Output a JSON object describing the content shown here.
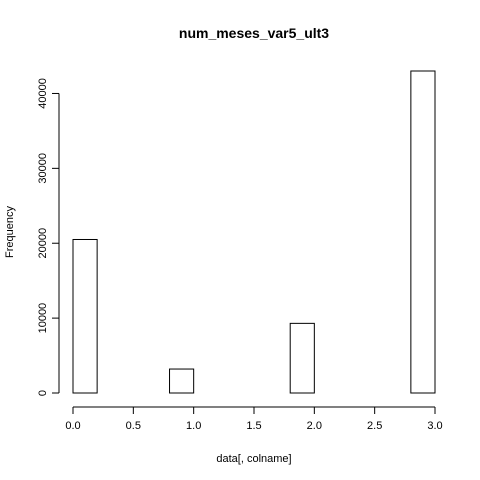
{
  "chart_data": {
    "type": "bar",
    "title": "num_meses_var5_ult3",
    "xlabel": "data[, colname]",
    "ylabel": "Frequency",
    "bins": [
      {
        "x0": 0.0,
        "x1": 0.2,
        "count": 20500
      },
      {
        "x0": 0.2,
        "x1": 0.4,
        "count": 0
      },
      {
        "x0": 0.4,
        "x1": 0.6,
        "count": 0
      },
      {
        "x0": 0.6,
        "x1": 0.8,
        "count": 0
      },
      {
        "x0": 0.8,
        "x1": 1.0,
        "count": 3200
      },
      {
        "x0": 1.0,
        "x1": 1.2,
        "count": 0
      },
      {
        "x0": 1.2,
        "x1": 1.4,
        "count": 0
      },
      {
        "x0": 1.4,
        "x1": 1.6,
        "count": 0
      },
      {
        "x0": 1.6,
        "x1": 1.8,
        "count": 0
      },
      {
        "x0": 1.8,
        "x1": 2.0,
        "count": 9300
      },
      {
        "x0": 2.0,
        "x1": 2.2,
        "count": 0
      },
      {
        "x0": 2.2,
        "x1": 2.4,
        "count": 0
      },
      {
        "x0": 2.4,
        "x1": 2.6,
        "count": 0
      },
      {
        "x0": 2.6,
        "x1": 2.8,
        "count": 0
      },
      {
        "x0": 2.8,
        "x1": 3.0,
        "count": 43000
      }
    ],
    "xlim": [
      0,
      3
    ],
    "ylim": [
      0,
      43000
    ],
    "x_ticks": [
      0.0,
      0.5,
      1.0,
      1.5,
      2.0,
      2.5,
      3.0
    ],
    "x_tick_labels": [
      "0.0",
      "0.5",
      "1.0",
      "1.5",
      "2.0",
      "2.5",
      "3.0"
    ],
    "y_ticks": [
      0,
      10000,
      20000,
      30000,
      40000
    ],
    "y_tick_labels": [
      "0",
      "10000",
      "20000",
      "30000",
      "40000"
    ],
    "grid": false
  }
}
